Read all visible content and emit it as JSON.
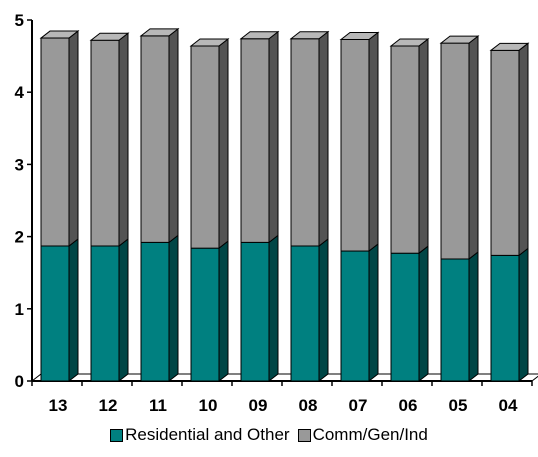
{
  "chart_data": {
    "type": "bar",
    "stacked": true,
    "three_d": true,
    "categories": [
      "13",
      "12",
      "11",
      "10",
      "09",
      "08",
      "07",
      "06",
      "05",
      "04"
    ],
    "series": [
      {
        "name": "Residential and Other",
        "color": "#008080",
        "values": [
          1.87,
          1.87,
          1.92,
          1.84,
          1.92,
          1.87,
          1.8,
          1.77,
          1.69,
          1.74
        ]
      },
      {
        "name": "Comm/Gen/Ind",
        "color": "#999999",
        "values": [
          2.88,
          2.85,
          2.86,
          2.8,
          2.82,
          2.87,
          2.93,
          2.87,
          2.99,
          2.84
        ]
      }
    ],
    "ylim": [
      0,
      5
    ],
    "yticks": [
      "0",
      "1",
      "2",
      "3",
      "4",
      "5"
    ],
    "grid": false,
    "legend_position": "bottom"
  }
}
